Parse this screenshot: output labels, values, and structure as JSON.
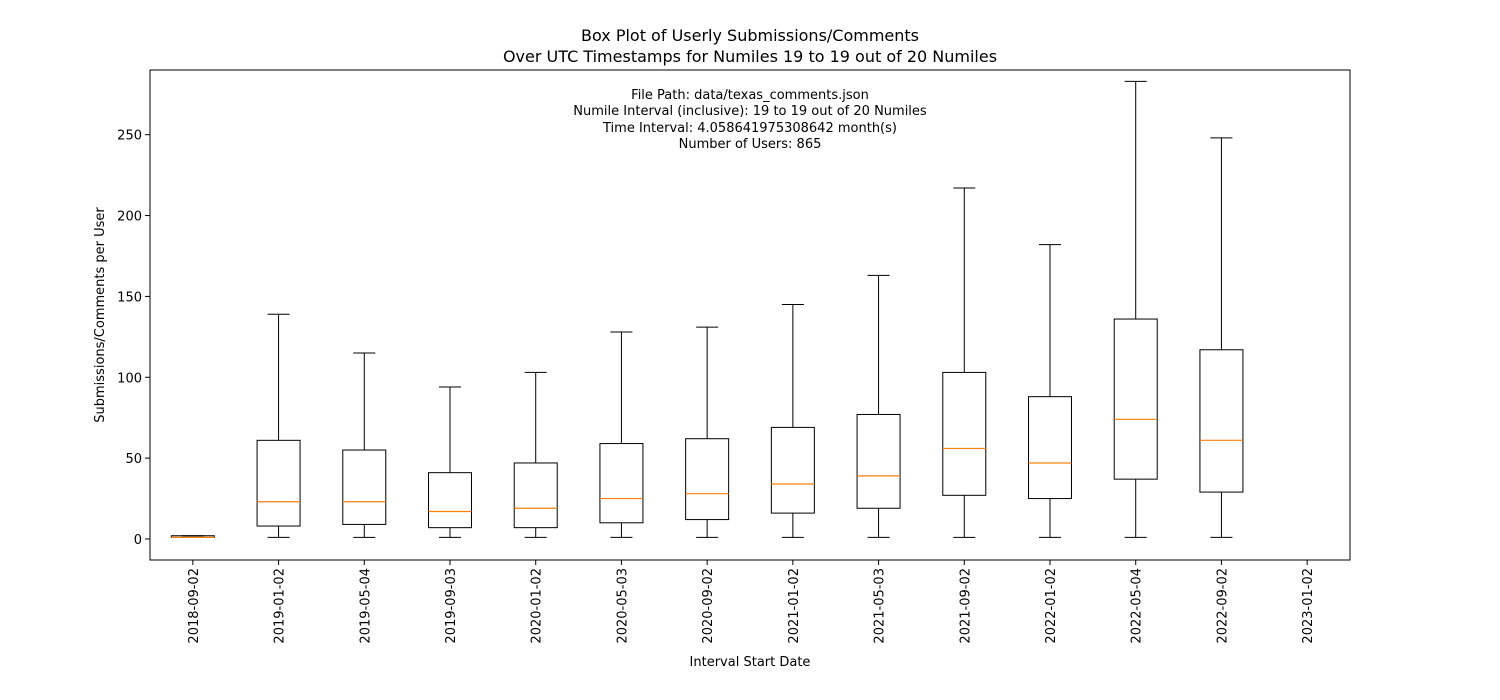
{
  "chart_data": {
    "type": "box",
    "title_lines": [
      "Box Plot of Userly Submissions/Comments",
      "Over UTC Timestamps for Numiles 19 to 19 out of 20 Numiles"
    ],
    "xlabel": "Interval Start Date",
    "ylabel": "Submissions/Comments per User",
    "ylim": [
      -13,
      290
    ],
    "yticks": [
      0,
      50,
      100,
      150,
      200,
      250
    ],
    "categories": [
      "2018-09-02",
      "2019-01-02",
      "2019-05-04",
      "2019-09-03",
      "2020-01-02",
      "2020-05-03",
      "2020-09-02",
      "2021-01-02",
      "2021-05-03",
      "2021-09-02",
      "2022-01-02",
      "2022-05-04",
      "2022-09-02",
      "2023-01-02"
    ],
    "boxes": [
      {
        "whisker_low": 1,
        "q1": 1,
        "median": 1,
        "q3": 2,
        "whisker_high": 2
      },
      {
        "whisker_low": 1,
        "q1": 8,
        "median": 23,
        "q3": 61,
        "whisker_high": 139
      },
      {
        "whisker_low": 1,
        "q1": 9,
        "median": 23,
        "q3": 55,
        "whisker_high": 115
      },
      {
        "whisker_low": 1,
        "q1": 7,
        "median": 17,
        "q3": 41,
        "whisker_high": 94
      },
      {
        "whisker_low": 1,
        "q1": 7,
        "median": 19,
        "q3": 47,
        "whisker_high": 103
      },
      {
        "whisker_low": 1,
        "q1": 10,
        "median": 25,
        "q3": 59,
        "whisker_high": 128
      },
      {
        "whisker_low": 1,
        "q1": 12,
        "median": 28,
        "q3": 62,
        "whisker_high": 131
      },
      {
        "whisker_low": 1,
        "q1": 16,
        "median": 34,
        "q3": 69,
        "whisker_high": 145
      },
      {
        "whisker_low": 1,
        "q1": 19,
        "median": 39,
        "q3": 77,
        "whisker_high": 163
      },
      {
        "whisker_low": 1,
        "q1": 27,
        "median": 56,
        "q3": 103,
        "whisker_high": 217
      },
      {
        "whisker_low": 1,
        "q1": 25,
        "median": 47,
        "q3": 88,
        "whisker_high": 182
      },
      {
        "whisker_low": 1,
        "q1": 37,
        "median": 74,
        "q3": 136,
        "whisker_high": 283
      },
      {
        "whisker_low": 1,
        "q1": 29,
        "median": 61,
        "q3": 117,
        "whisker_high": 248
      },
      null
    ],
    "annotation_lines": [
      "File Path: data/texas_comments.json",
      "Numile Interval (inclusive): 19 to 19 out of 20 Numiles",
      "Time Interval: 4.058641975308642 month(s)",
      "Number of Users: 865"
    ],
    "grid": false,
    "legend": "none",
    "colors": {
      "box": "#000000",
      "median": "#ff7f0e",
      "background": "#ffffff"
    }
  }
}
